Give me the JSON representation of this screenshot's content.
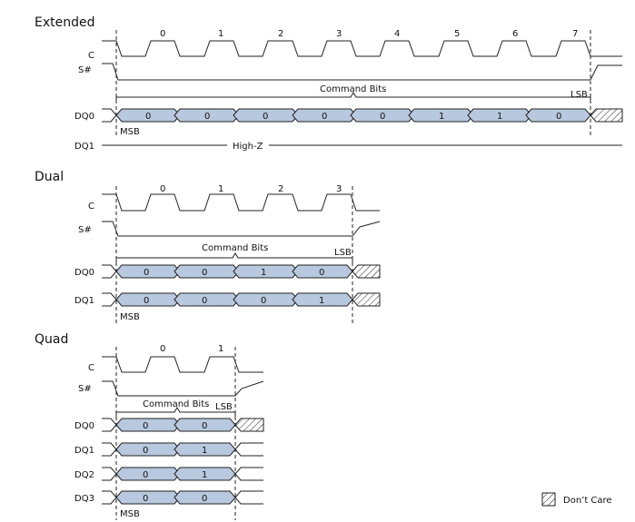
{
  "sections": [
    {
      "title": "Extended",
      "lanes": [
        {
          "name": "DQ0",
          "bits": [
            "0",
            "0",
            "0",
            "0",
            "0",
            "1",
            "1",
            "0"
          ]
        }
      ],
      "clock_labels": [
        "0",
        "1",
        "2",
        "3",
        "4",
        "5",
        "6",
        "7"
      ],
      "high_z_lane": {
        "name": "DQ1",
        "text": "High-Z"
      }
    },
    {
      "title": "Dual",
      "lanes": [
        {
          "name": "DQ0",
          "bits": [
            "0",
            "0",
            "1",
            "0"
          ]
        },
        {
          "name": "DQ1",
          "bits": [
            "0",
            "0",
            "0",
            "1"
          ]
        }
      ],
      "clock_labels": [
        "0",
        "1",
        "2",
        "3"
      ]
    },
    {
      "title": "Quad",
      "lanes": [
        {
          "name": "DQ0",
          "bits": [
            "0",
            "0"
          ]
        },
        {
          "name": "DQ1",
          "bits": [
            "0",
            "1"
          ]
        },
        {
          "name": "DQ2",
          "bits": [
            "0",
            "1"
          ]
        },
        {
          "name": "DQ3",
          "bits": [
            "0",
            "0"
          ]
        }
      ],
      "clock_labels": [
        "0",
        "1"
      ]
    }
  ],
  "labels": {
    "clock": "C",
    "select": "S#",
    "command_bits": "Command Bits",
    "lsb": "LSB",
    "msb": "MSB"
  },
  "legend": {
    "text": "Don’t Care"
  }
}
